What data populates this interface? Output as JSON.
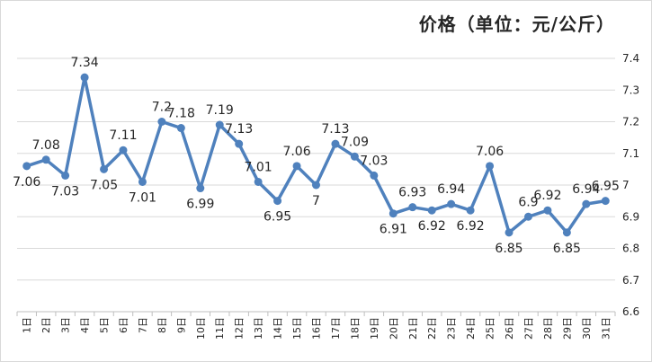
{
  "chart_data": {
    "type": "line",
    "title": "价格（单位：元/公斤）",
    "xlabel": "",
    "ylabel": "",
    "ylim": [
      6.6,
      7.4
    ],
    "yticks": [
      "6.6",
      "6.7",
      "6.8",
      "6.9",
      "7",
      "7.1",
      "7.2",
      "7.3",
      "7.4"
    ],
    "y_axis_position": "right",
    "grid": "horizontal",
    "legend": "none",
    "color": "#4f81bd",
    "categories": [
      "1日",
      "2日",
      "3日",
      "4日",
      "5日",
      "6日",
      "7日",
      "8日",
      "9日",
      "10日",
      "11日",
      "12日",
      "13日",
      "14日",
      "15日",
      "16日",
      "17日",
      "18日",
      "19日",
      "20日",
      "21日",
      "22日",
      "23日",
      "24日",
      "25日",
      "26日",
      "27日",
      "28日",
      "29日",
      "30日",
      "31日"
    ],
    "values": [
      7.06,
      7.08,
      7.03,
      7.34,
      7.05,
      7.11,
      7.01,
      7.2,
      7.18,
      6.99,
      7.19,
      7.13,
      7.01,
      6.95,
      7.06,
      7,
      7.13,
      7.09,
      7.03,
      6.91,
      6.93,
      6.92,
      6.94,
      6.92,
      7.06,
      6.85,
      6.9,
      6.92,
      6.85,
      6.94,
      6.95
    ],
    "data_labels": [
      "7.06",
      "7.08",
      "7.03",
      "7.34",
      "7.05",
      "7.11",
      "7.01",
      "7.2",
      "7.18",
      "6.99",
      "7.19",
      "7.13",
      "7.01",
      "6.95",
      "7.06",
      "7",
      "7.13",
      "7.09",
      "7.03",
      "6.91",
      "6.93",
      "6.92",
      "6.94",
      "6.92",
      "7.06",
      "6.85",
      "6.9",
      "6.92",
      "6.85",
      "6.94",
      "6.95"
    ]
  }
}
